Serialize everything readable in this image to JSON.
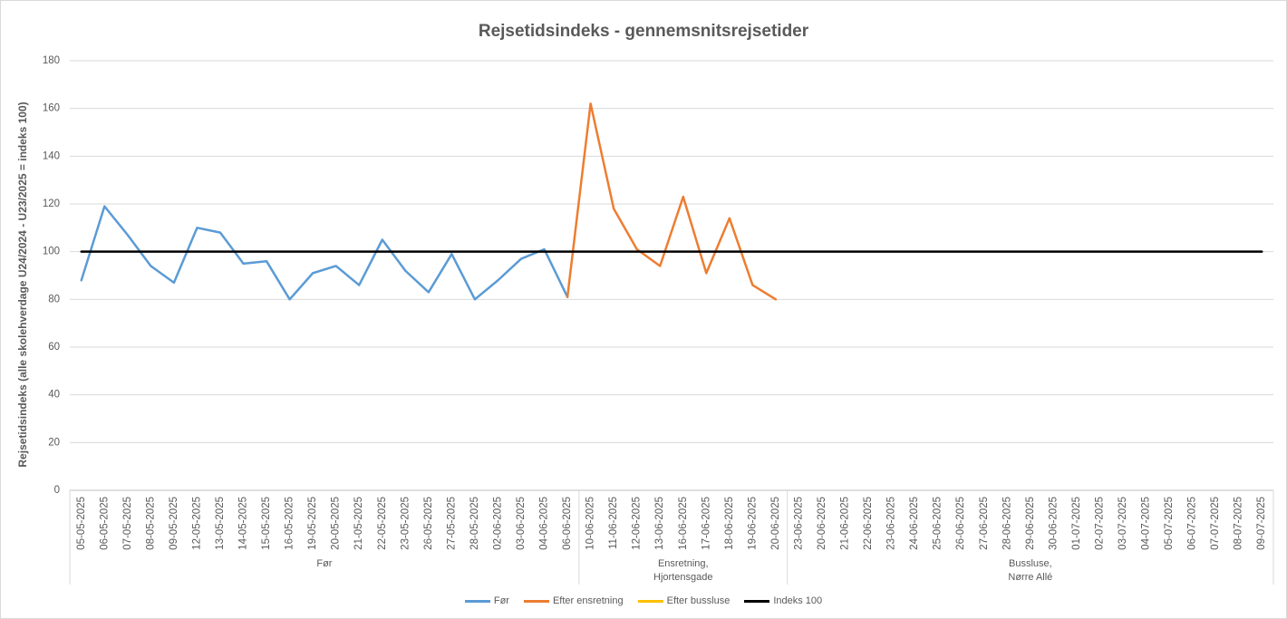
{
  "chart_data": {
    "type": "line",
    "title": "Rejsetidsindeks - gennemsnitsrejsetider",
    "ylabel": "Rejsetidsindeks (alle skolehverdage U24/2024 - U23/2025 = indeks 100)",
    "ylim": [
      0,
      180
    ],
    "yticks": [
      0,
      20,
      40,
      60,
      80,
      100,
      120,
      140,
      160,
      180
    ],
    "grid": true,
    "legend": "bottom",
    "category_groups": [
      {
        "label_lines": [
          "Før"
        ],
        "categories": [
          "05-05-2025",
          "06-05-2025",
          "07-05-2025",
          "08-05-2025",
          "09-05-2025",
          "12-05-2025",
          "13-05-2025",
          "14-05-2025",
          "15-05-2025",
          "16-05-2025",
          "19-05-2025",
          "20-05-2025",
          "21-05-2025",
          "22-05-2025",
          "23-05-2025",
          "26-05-2025",
          "27-05-2025",
          "28-05-2025",
          "02-06-2025",
          "03-06-2025",
          "04-06-2025",
          "06-06-2025"
        ]
      },
      {
        "label_lines": [
          "Ensretning,",
          "Hjortensgade"
        ],
        "categories": [
          "10-06-2025",
          "11-06-2025",
          "12-06-2025",
          "13-06-2025",
          "16-06-2025",
          "17-06-2025",
          "18-06-2025",
          "19-06-2025",
          "20-06-2025"
        ]
      },
      {
        "label_lines": [
          "Bussluse,",
          "Nørre Allé"
        ],
        "categories": [
          "23-06-2025",
          "20-06-2025",
          "21-06-2025",
          "22-06-2025",
          "23-06-2025",
          "24-06-2025",
          "25-06-2025",
          "26-06-2025",
          "27-06-2025",
          "28-06-2025",
          "29-06-2025",
          "30-06-2025",
          "01-07-2025",
          "02-07-2025",
          "03-07-2025",
          "04-07-2025",
          "05-07-2025",
          "06-07-2025",
          "07-07-2025",
          "08-07-2025",
          "09-07-2025"
        ]
      }
    ],
    "series": [
      {
        "name": "Før",
        "color": "#5B9BD5",
        "values": [
          88,
          119,
          107,
          94,
          87,
          110,
          108,
          95,
          96,
          80,
          91,
          94,
          86,
          105,
          92,
          83,
          99,
          80,
          88,
          97,
          101,
          81,
          null,
          null,
          null,
          null,
          null,
          null,
          null,
          null,
          null,
          null,
          null,
          null,
          null,
          null,
          null,
          null,
          null,
          null,
          null,
          null,
          null,
          null,
          null,
          null,
          null,
          null,
          null,
          null,
          null,
          null
        ]
      },
      {
        "name": "Efter ensretning",
        "color": "#ED7D31",
        "values": [
          null,
          null,
          null,
          null,
          null,
          null,
          null,
          null,
          null,
          null,
          null,
          null,
          null,
          null,
          null,
          null,
          null,
          null,
          null,
          null,
          null,
          81,
          162,
          118,
          101,
          94,
          123,
          91,
          114,
          86,
          80,
          null,
          null,
          null,
          null,
          null,
          null,
          null,
          null,
          null,
          null,
          null,
          null,
          null,
          null,
          null,
          null,
          null,
          null,
          null,
          null,
          null
        ]
      },
      {
        "name": "Efter bussluse",
        "color": "#FFC000",
        "values": [
          null,
          null,
          null,
          null,
          null,
          null,
          null,
          null,
          null,
          null,
          null,
          null,
          null,
          null,
          null,
          null,
          null,
          null,
          null,
          null,
          null,
          null,
          null,
          null,
          null,
          null,
          null,
          null,
          null,
          null,
          null,
          null,
          null,
          null,
          null,
          null,
          null,
          null,
          null,
          null,
          null,
          null,
          null,
          null,
          null,
          null,
          null,
          null,
          null,
          null,
          null,
          null
        ]
      },
      {
        "name": "Indeks 100",
        "color": "#000000",
        "values": [
          100,
          100,
          100,
          100,
          100,
          100,
          100,
          100,
          100,
          100,
          100,
          100,
          100,
          100,
          100,
          100,
          100,
          100,
          100,
          100,
          100,
          100,
          100,
          100,
          100,
          100,
          100,
          100,
          100,
          100,
          100,
          100,
          100,
          100,
          100,
          100,
          100,
          100,
          100,
          100,
          100,
          100,
          100,
          100,
          100,
          100,
          100,
          100,
          100,
          100,
          100,
          100
        ]
      }
    ]
  }
}
